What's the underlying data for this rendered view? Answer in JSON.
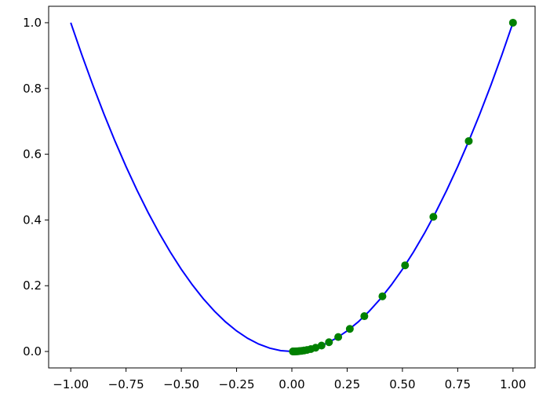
{
  "chart_data": {
    "type": "line",
    "xlim": [
      -1.1,
      1.1
    ],
    "ylim": [
      -0.05,
      1.05
    ],
    "xticks": [
      {
        "value": -1,
        "label": "−1.00"
      },
      {
        "value": -0.75,
        "label": "−0.75"
      },
      {
        "value": -0.5,
        "label": "−0.50"
      },
      {
        "value": -0.25,
        "label": "−0.25"
      },
      {
        "value": 0,
        "label": "0.00"
      },
      {
        "value": 0.25,
        "label": "0.25"
      },
      {
        "value": 0.5,
        "label": "0.50"
      },
      {
        "value": 0.75,
        "label": "0.75"
      },
      {
        "value": 1,
        "label": "1.00"
      }
    ],
    "yticks": [
      {
        "value": 0,
        "label": "0.0"
      },
      {
        "value": 0.2,
        "label": "0.2"
      },
      {
        "value": 0.4,
        "label": "0.4"
      },
      {
        "value": 0.6,
        "label": "0.6"
      },
      {
        "value": 0.8,
        "label": "0.8"
      },
      {
        "value": 1,
        "label": "1.0"
      }
    ],
    "grid": false,
    "series": [
      {
        "color": "#0000ff",
        "mode": "line",
        "x": [
          -1,
          -0.95,
          -0.9,
          -0.85,
          -0.8,
          -0.75,
          -0.7,
          -0.65,
          -0.6,
          -0.55,
          -0.5,
          -0.45,
          -0.4,
          -0.35,
          -0.3,
          -0.25,
          -0.2,
          -0.15,
          -0.1,
          -0.05,
          0,
          0.05,
          0.1,
          0.15,
          0.2,
          0.25,
          0.3,
          0.35,
          0.4,
          0.45,
          0.5,
          0.55,
          0.6,
          0.65,
          0.7,
          0.75,
          0.8,
          0.85,
          0.9,
          0.95,
          1
        ],
        "values": [
          1,
          0.9025,
          0.81,
          0.7225,
          0.64,
          0.5625,
          0.49,
          0.4225,
          0.36,
          0.3025,
          0.25,
          0.2025,
          0.16,
          0.1225,
          0.09,
          0.0625,
          0.04,
          0.0225,
          0.01,
          0.0025,
          0,
          0.0025,
          0.01,
          0.0225,
          0.04,
          0.0625,
          0.09,
          0.1225,
          0.16,
          0.2025,
          0.25,
          0.3025,
          0.36,
          0.4225,
          0.49,
          0.5625,
          0.64,
          0.7225,
          0.81,
          0.9025,
          1
        ]
      },
      {
        "color": "#008000",
        "mode": "markers",
        "x": [
          1,
          0.8,
          0.64,
          0.512,
          0.4096,
          0.3277,
          0.2621,
          0.2097,
          0.1678,
          0.1342,
          0.1074,
          0.0859,
          0.0687,
          0.055,
          0.044,
          0.0352,
          0.0281,
          0.0225,
          0.018,
          0.0144,
          0.0115,
          0.0092,
          0.0074,
          0.0059,
          0.0047
        ],
        "values": [
          1,
          0.64,
          0.4096,
          0.2621,
          0.1678,
          0.1074,
          0.0687,
          0.044,
          0.0281,
          0.018,
          0.0115,
          0.0074,
          0.0047,
          0.003,
          0.0019,
          0.0012,
          0.0008,
          0.0005,
          0.0003,
          0.0002,
          0.0001,
          0.0001,
          0.0001,
          0,
          0
        ]
      }
    ]
  }
}
